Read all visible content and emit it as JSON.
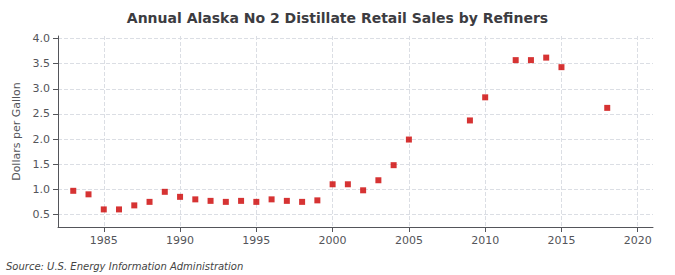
{
  "chart_data": {
    "type": "scatter",
    "title": "Annual Alaska No 2 Distillate Retail Sales by Refiners",
    "ylabel": "Dollars per Gallon",
    "annotations": [
      "Source: U.S. Energy Information Administration"
    ],
    "x": [
      1983,
      1984,
      1985,
      1986,
      1987,
      1988,
      1989,
      1990,
      1991,
      1992,
      1993,
      1994,
      1995,
      1996,
      1997,
      1998,
      1999,
      2000,
      2001,
      2002,
      2003,
      2004,
      2005,
      2009,
      2010,
      2012,
      2013,
      2014,
      2015,
      2018
    ],
    "values": [
      0.97,
      0.9,
      0.6,
      0.6,
      0.68,
      0.75,
      0.95,
      0.85,
      0.8,
      0.77,
      0.75,
      0.77,
      0.75,
      0.8,
      0.77,
      0.75,
      0.78,
      1.1,
      1.1,
      0.98,
      1.18,
      1.48,
      1.99,
      2.37,
      2.83,
      3.57,
      3.57,
      3.62,
      3.43,
      2.62
    ],
    "color": "#cc0000",
    "marker": "square",
    "xlim": [
      1982,
      2021
    ],
    "xticks": [
      1985,
      1990,
      1995,
      2000,
      2005,
      2010,
      2015,
      2020
    ],
    "ylim": [
      0.25,
      4.05
    ],
    "yticks": [
      0.5,
      {
        "value": 1.0,
        "label": "1.0"
      },
      1.5,
      {
        "value": 2.0,
        "label": "2.0"
      },
      2.5,
      {
        "value": 3.0,
        "label": "3.0"
      },
      3.5,
      {
        "value": 4.0,
        "label": "4.0"
      }
    ],
    "grid": true
  }
}
